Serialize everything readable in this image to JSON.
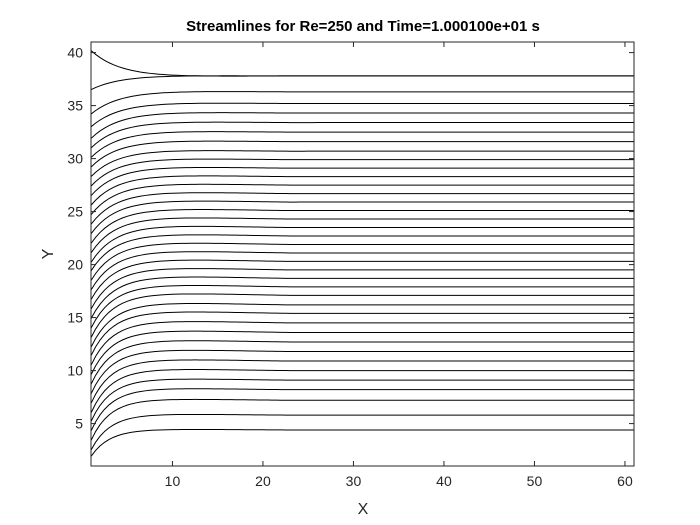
{
  "chart_data": {
    "type": "line",
    "title": "Streamlines for Re=250 and Time=1.000100e+01 s",
    "xlabel": "X",
    "ylabel": "Y",
    "xlim": [
      1,
      61
    ],
    "ylim": [
      1,
      41
    ],
    "xticks": [
      10,
      20,
      30,
      40,
      50,
      60
    ],
    "yticks": [
      5,
      10,
      15,
      20,
      25,
      30,
      35,
      40
    ],
    "grid": false,
    "legend": "none",
    "line_color": "#000000",
    "axis_color": "#262626",
    "streamlines": [
      {
        "start_y": 1.9,
        "end_y": 4.4
      },
      {
        "start_y": 2.5,
        "end_y": 5.8
      },
      {
        "start_y": 3.4,
        "end_y": 7.2
      },
      {
        "start_y": 4.3,
        "end_y": 8.2
      },
      {
        "start_y": 5.2,
        "end_y": 9.1
      },
      {
        "start_y": 6.0,
        "end_y": 10.0
      },
      {
        "start_y": 6.9,
        "end_y": 10.9
      },
      {
        "start_y": 7.8,
        "end_y": 11.8
      },
      {
        "start_y": 8.7,
        "end_y": 12.7
      },
      {
        "start_y": 9.6,
        "end_y": 13.6
      },
      {
        "start_y": 10.5,
        "end_y": 14.5
      },
      {
        "start_y": 11.4,
        "end_y": 15.4
      },
      {
        "start_y": 12.2,
        "end_y": 16.2
      },
      {
        "start_y": 13.1,
        "end_y": 17.1
      },
      {
        "start_y": 14.0,
        "end_y": 17.9
      },
      {
        "start_y": 14.9,
        "end_y": 18.7
      },
      {
        "start_y": 15.8,
        "end_y": 19.5
      },
      {
        "start_y": 16.7,
        "end_y": 20.3
      },
      {
        "start_y": 17.6,
        "end_y": 21.1
      },
      {
        "start_y": 18.5,
        "end_y": 21.9
      },
      {
        "start_y": 19.4,
        "end_y": 22.7
      },
      {
        "start_y": 20.2,
        "end_y": 23.5
      },
      {
        "start_y": 21.1,
        "end_y": 24.3
      },
      {
        "start_y": 22.0,
        "end_y": 25.1
      },
      {
        "start_y": 22.9,
        "end_y": 25.9
      },
      {
        "start_y": 23.8,
        "end_y": 26.7
      },
      {
        "start_y": 24.7,
        "end_y": 27.5
      },
      {
        "start_y": 25.6,
        "end_y": 28.3
      },
      {
        "start_y": 26.5,
        "end_y": 29.1
      },
      {
        "start_y": 27.4,
        "end_y": 29.9
      },
      {
        "start_y": 28.3,
        "end_y": 30.7
      },
      {
        "start_y": 29.2,
        "end_y": 31.6
      },
      {
        "start_y": 30.1,
        "end_y": 32.5
      },
      {
        "start_y": 31.0,
        "end_y": 33.4
      },
      {
        "start_y": 31.9,
        "end_y": 34.3
      },
      {
        "start_y": 33.0,
        "end_y": 35.2
      },
      {
        "start_y": 34.2,
        "end_y": 36.3
      },
      {
        "start_y": 36.5,
        "end_y": 37.8
      },
      {
        "start_y": 40.2,
        "end_y": 37.8
      }
    ]
  }
}
